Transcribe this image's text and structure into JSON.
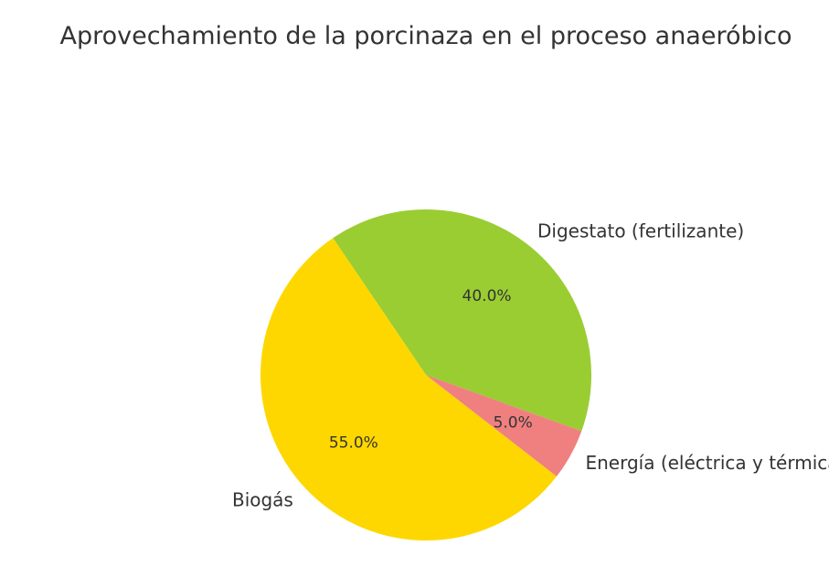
{
  "chart_data": {
    "type": "pie",
    "title": "Aprovechamiento de la porcinaza en el proceso anaeróbico",
    "categories": [
      "Digestato (fertilizante)",
      "Biogás",
      "Energía (eléctrica y térmica)"
    ],
    "values": [
      40.0,
      55.0,
      5.0
    ],
    "value_labels": [
      "40.0%",
      "55.0%",
      "5.0%"
    ],
    "colors": [
      "#9acd32",
      "#ffd700",
      "#f08080"
    ],
    "legend": "none"
  }
}
